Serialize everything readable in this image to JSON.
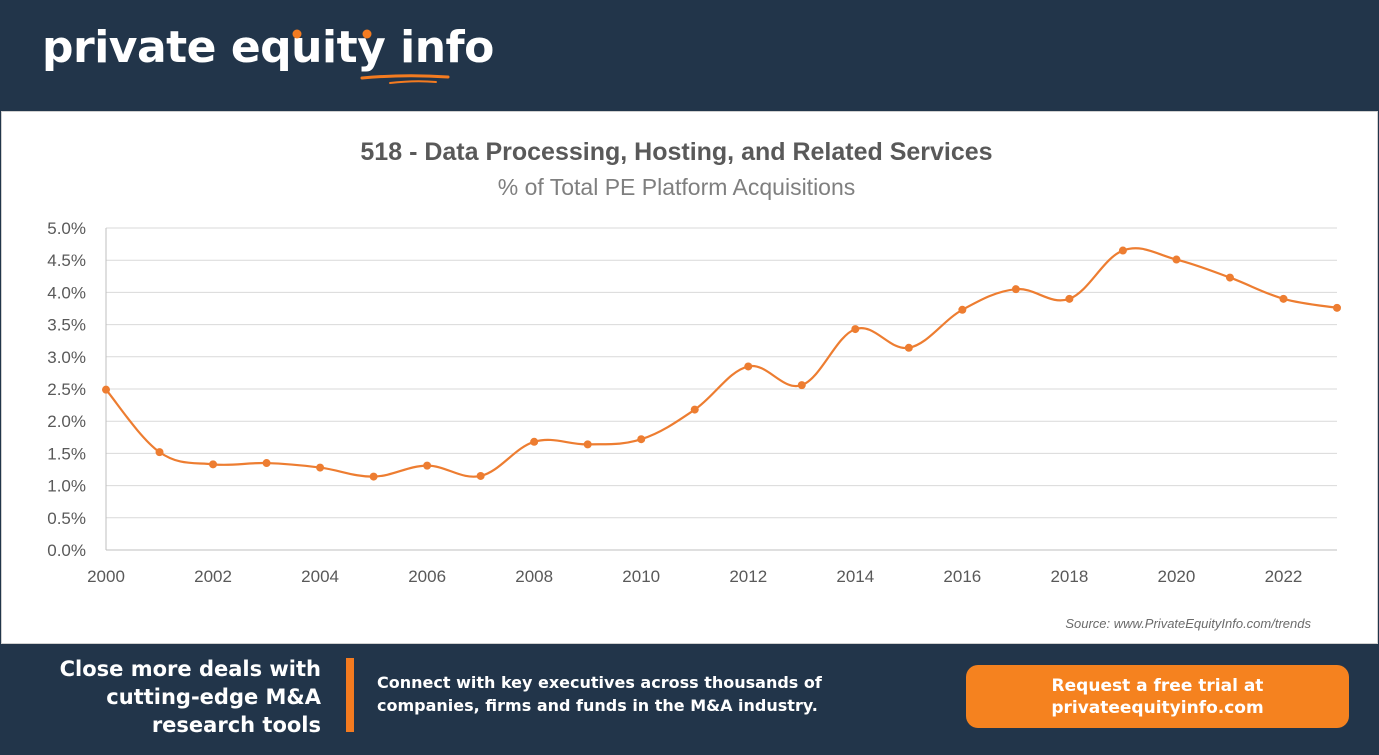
{
  "header": {
    "logo_text_1": "private equity ",
    "logo_text_2": "info"
  },
  "colors": {
    "background": "#22354a",
    "accent": "#f47b20",
    "line": "#ed7d31",
    "grid": "#d9d9d9"
  },
  "source": "Source: www.PrivateEquityInfo.com/trends",
  "chart_data": {
    "type": "line",
    "title": "518 - Data Processing, Hosting, and Related Services",
    "subtitle": "% of Total PE Platform Acquisitions",
    "xlabel": "",
    "ylabel": "",
    "ylim": [
      0,
      5.0
    ],
    "xlim": [
      2000,
      2023
    ],
    "y_ticks": [
      "0.0%",
      "0.5%",
      "1.0%",
      "1.5%",
      "2.0%",
      "2.5%",
      "3.0%",
      "3.5%",
      "4.0%",
      "4.5%",
      "5.0%"
    ],
    "x_ticks": [
      "2000",
      "2002",
      "2004",
      "2006",
      "2008",
      "2010",
      "2012",
      "2014",
      "2016",
      "2018",
      "2020",
      "2022"
    ],
    "grid": true,
    "smooth": true,
    "x": [
      2000,
      2001,
      2002,
      2003,
      2004,
      2005,
      2006,
      2007,
      2008,
      2009,
      2010,
      2011,
      2012,
      2013,
      2014,
      2015,
      2016,
      2017,
      2018,
      2019,
      2020,
      2021,
      2022,
      2023
    ],
    "values": [
      2.49,
      1.52,
      1.33,
      1.35,
      1.28,
      1.14,
      1.31,
      1.15,
      1.68,
      1.64,
      1.72,
      2.18,
      2.85,
      2.56,
      3.43,
      3.14,
      3.73,
      4.05,
      3.9,
      4.65,
      4.51,
      4.23,
      3.9,
      3.76
    ]
  },
  "footer": {
    "tagline_1": "Close more deals with",
    "tagline_2": "cutting-edge M&A",
    "tagline_3": "research tools",
    "desc_1": "Connect with key executives across thousands of",
    "desc_2": "companies, firms and funds in the M&A industry.",
    "cta_1": "Request a free trial at",
    "cta_2": "privateequityinfo.com"
  }
}
